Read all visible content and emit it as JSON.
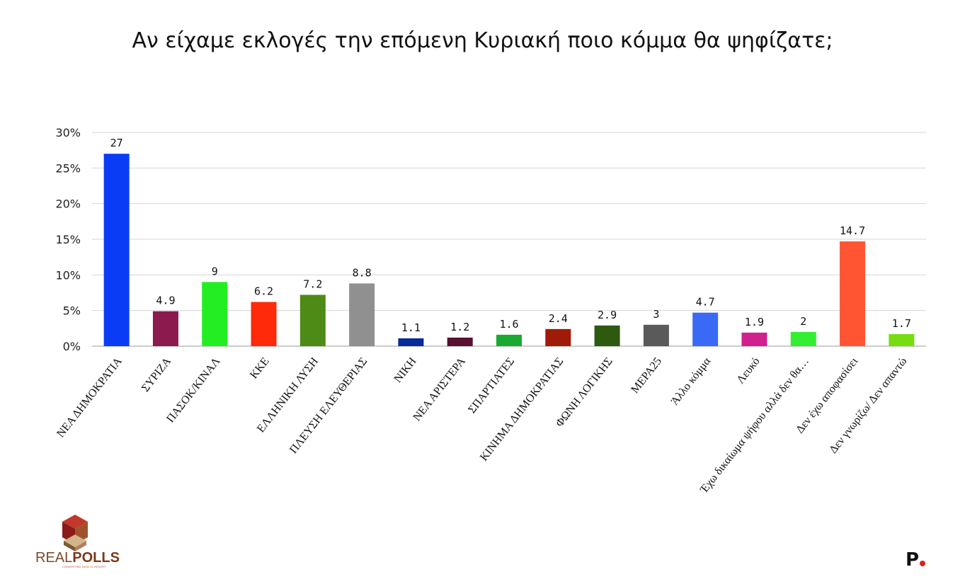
{
  "title": "Αν είχαμε εκλογές την επόμενη Κυριακή ποιο κόμμα θα ψηφίζατε;",
  "chart_data": {
    "type": "bar",
    "title": "Αν είχαμε εκλογές την επόμενη Κυριακή ποιο κόμμα θα ψηφίζατε;",
    "categories": [
      "ΝΕΑ ΔΗΜΟΚΡΑΤΙΑ",
      "ΣΥΡΙΖΑ",
      "ΠΑΣΟΚ/ΚΙΝΑΛ",
      "ΚΚΕ",
      "ΕΛΛΗΝΙΚΗ ΛΥΣΗ",
      "ΠΛΕΥΣΗ ΕΛΕΥΘΕΡΙΑΣ",
      "ΝΙΚΗ",
      "ΝΕΑ ΑΡΙΣΤΕΡΑ",
      "ΣΠΑΡΤΙΑΤΕΣ",
      "ΚΙΝΗΜΑ ΔΗΜΟΚΡΑΤΙΑΣ",
      "ΦΩΝΗ ΛΟΓΙΚΗΣ",
      "ΜΕΡΑ25",
      "Άλλο κόμμα",
      "Λευκό",
      "Έχω δικαίωμα ψήφου αλλά δεν θα…",
      "Δεν έχω αποφασίσει",
      "Δεν γνωρίζω/ Δεν απαντώ"
    ],
    "values": [
      27,
      4.9,
      9,
      6.2,
      7.2,
      8.8,
      1.1,
      1.2,
      1.6,
      2.4,
      2.9,
      3,
      4.7,
      1.9,
      2,
      14.7,
      1.7
    ],
    "data_labels": [
      "27",
      "4.9",
      "9",
      "6.2",
      "7.2",
      "8.8",
      "1.1",
      "1.2",
      "1.6",
      "2.4",
      "2.9",
      "3",
      "4.7",
      "1.9",
      "2",
      "14.7",
      "1.7"
    ],
    "colors": [
      "#0a3cf5",
      "#8c1a4f",
      "#22ee22",
      "#ff2a0a",
      "#4e8a16",
      "#909090",
      "#0a2a9a",
      "#5a1030",
      "#1aaa30",
      "#a01a08",
      "#2e5a10",
      "#5a5a5a",
      "#3a6af5",
      "#d02090",
      "#33ee33",
      "#ff5533",
      "#77dd10"
    ],
    "ylim": [
      0,
      30
    ],
    "yticks": [
      0,
      5,
      10,
      15,
      20,
      25,
      30
    ],
    "ytick_labels": [
      "0%",
      "5%",
      "10%",
      "15%",
      "20%",
      "25%",
      "30%"
    ],
    "xlabel": "",
    "ylabel": "",
    "grid": true
  },
  "logos": {
    "realpolls_a": "REAL",
    "realpolls_b": "POLLS",
    "realpolls_tagline": "CONVERTING DATA TO INSIGHT",
    "publisher_mark": "P",
    "publisher_dot_color": "#e0201a"
  }
}
